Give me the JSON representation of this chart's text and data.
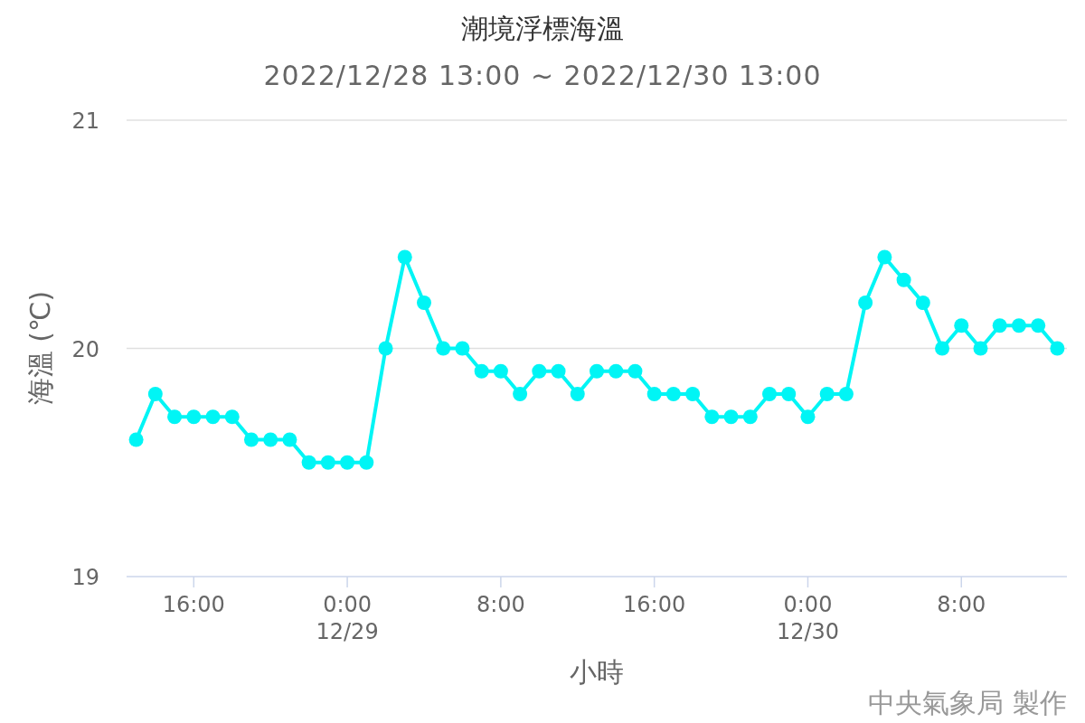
{
  "chart_data": {
    "type": "line",
    "title": "潮境浮標海溫",
    "subtitle": "2022/12/28 13:00 ~ 2022/12/30 13:00",
    "xlabel": "小時",
    "ylabel": "海溫 (℃)",
    "x": [
      "2022-12-28T13:00",
      "2022-12-28T14:00",
      "2022-12-28T15:00",
      "2022-12-28T16:00",
      "2022-12-28T17:00",
      "2022-12-28T18:00",
      "2022-12-28T19:00",
      "2022-12-28T20:00",
      "2022-12-28T21:00",
      "2022-12-28T22:00",
      "2022-12-28T23:00",
      "2022-12-29T00:00",
      "2022-12-29T01:00",
      "2022-12-29T02:00",
      "2022-12-29T03:00",
      "2022-12-29T04:00",
      "2022-12-29T05:00",
      "2022-12-29T06:00",
      "2022-12-29T07:00",
      "2022-12-29T08:00",
      "2022-12-29T09:00",
      "2022-12-29T10:00",
      "2022-12-29T11:00",
      "2022-12-29T12:00",
      "2022-12-29T13:00",
      "2022-12-29T14:00",
      "2022-12-29T15:00",
      "2022-12-29T16:00",
      "2022-12-29T17:00",
      "2022-12-29T18:00",
      "2022-12-29T19:00",
      "2022-12-29T20:00",
      "2022-12-29T21:00",
      "2022-12-29T22:00",
      "2022-12-29T23:00",
      "2022-12-30T00:00",
      "2022-12-30T01:00",
      "2022-12-30T02:00",
      "2022-12-30T03:00",
      "2022-12-30T04:00",
      "2022-12-30T05:00",
      "2022-12-30T06:00",
      "2022-12-30T07:00",
      "2022-12-30T08:00",
      "2022-12-30T09:00",
      "2022-12-30T10:00",
      "2022-12-30T11:00",
      "2022-12-30T12:00",
      "2022-12-30T13:00"
    ],
    "series": [
      {
        "color": "#00f5f5",
        "values": [
          19.6,
          19.8,
          19.7,
          19.7,
          19.7,
          19.7,
          19.6,
          19.6,
          19.6,
          19.5,
          19.5,
          19.5,
          19.5,
          20.0,
          20.4,
          20.2,
          20.0,
          20.0,
          19.9,
          19.9,
          19.8,
          19.9,
          19.9,
          19.8,
          19.9,
          19.9,
          19.9,
          19.8,
          19.8,
          19.8,
          19.7,
          19.7,
          19.7,
          19.8,
          19.8,
          19.7,
          19.8,
          19.8,
          20.2,
          20.4,
          20.3,
          20.2,
          20.0,
          20.1,
          20.0,
          20.1,
          20.1,
          20.1,
          20.0
        ]
      }
    ],
    "xlim": [
      "2022-12-28T12:30",
      "2022-12-30T13:30"
    ],
    "xticks": [
      {
        "value": "2022-12-28T16:00",
        "label": "16:00"
      },
      {
        "value": "2022-12-29T00:00",
        "label": "0:00\n12/29"
      },
      {
        "value": "2022-12-29T08:00",
        "label": "8:00"
      },
      {
        "value": "2022-12-29T16:00",
        "label": "16:00"
      },
      {
        "value": "2022-12-30T00:00",
        "label": "0:00\n12/30"
      },
      {
        "value": "2022-12-30T08:00",
        "label": "8:00"
      }
    ],
    "ylim": [
      19,
      21
    ],
    "yticks": [
      19,
      20,
      21
    ],
    "grid": "y",
    "marker": "circle",
    "line_style": "solid",
    "annotations": [
      "中央氣象局 製作"
    ]
  }
}
